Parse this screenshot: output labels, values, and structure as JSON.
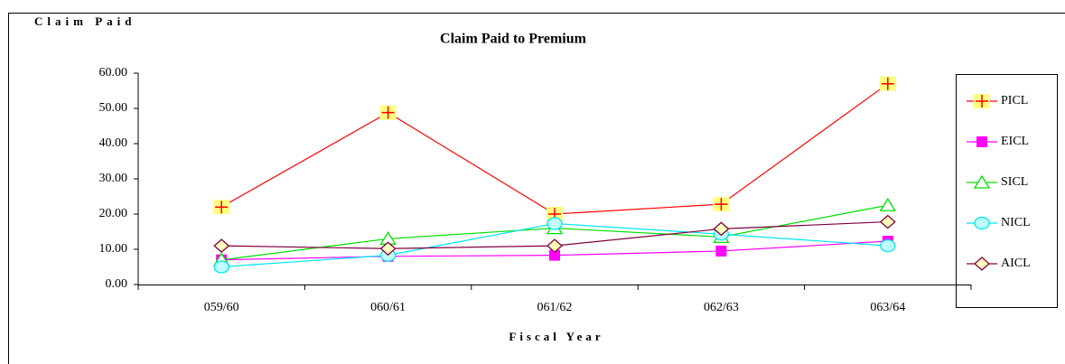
{
  "chart_data": {
    "type": "line",
    "title": "Claim Paid to Premium",
    "y_label": "Claim Paid",
    "x_label": "Fiscal Year",
    "categories": [
      "059/60",
      "060/61",
      "061/62",
      "062/63",
      "063/64"
    ],
    "series": [
      {
        "name": "PICL",
        "color": "#ff0000",
        "marker": "plus",
        "values": [
          22,
          48.8,
          20,
          22.8,
          57
        ]
      },
      {
        "name": "EICL",
        "color": "#ff00ff",
        "marker": "square",
        "values": [
          7,
          8,
          8.3,
          9.5,
          12.3
        ]
      },
      {
        "name": "SICL",
        "color": "#00e000",
        "marker": "triangle",
        "values": [
          7,
          13,
          16,
          13.5,
          22.5
        ]
      },
      {
        "name": "NICL",
        "color": "#00e5ee",
        "marker": "circle",
        "values": [
          5,
          8.3,
          17.3,
          14.3,
          11
        ]
      },
      {
        "name": "AICL",
        "color": "#800040",
        "marker": "diamond",
        "values": [
          11,
          10.2,
          11,
          15.8,
          17.8
        ]
      }
    ],
    "ylim": [
      0,
      60
    ],
    "yticks": [
      {
        "value": 0,
        "label": "0.00"
      },
      {
        "value": 10,
        "label": "10.00"
      },
      {
        "value": 20,
        "label": "20.00"
      },
      {
        "value": 30,
        "label": "30.00"
      },
      {
        "value": 40,
        "label": "40.00"
      },
      {
        "value": 50,
        "label": "50.00"
      },
      {
        "value": 60,
        "label": "60.00"
      }
    ],
    "grid": false,
    "legend": "right"
  }
}
